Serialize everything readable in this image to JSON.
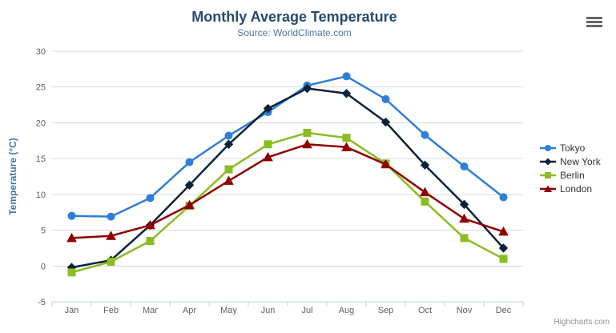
{
  "chart_data": {
    "type": "line",
    "title": "Monthly Average Temperature",
    "subtitle": "Source: WorldClimate.com",
    "categories": [
      "Jan",
      "Feb",
      "Mar",
      "Apr",
      "May",
      "Jun",
      "Jul",
      "Aug",
      "Sep",
      "Oct",
      "Nov",
      "Dec"
    ],
    "xlabel": "",
    "ylabel": "Temperature (°C)",
    "ylim": [
      -5,
      30
    ],
    "yticks": [
      -5,
      0,
      5,
      10,
      15,
      20,
      25,
      30
    ],
    "grid": true,
    "legend_position": "right",
    "series": [
      {
        "name": "Tokyo",
        "color": "#2f7ed8",
        "marker": "circle",
        "values": [
          7.0,
          6.9,
          9.5,
          14.5,
          18.2,
          21.5,
          25.2,
          26.5,
          23.3,
          18.3,
          13.9,
          9.6
        ]
      },
      {
        "name": "New York",
        "color": "#0d233a",
        "marker": "diamond",
        "values": [
          -0.2,
          0.8,
          5.7,
          11.3,
          17.0,
          22.0,
          24.8,
          24.1,
          20.1,
          14.1,
          8.6,
          2.5
        ]
      },
      {
        "name": "Berlin",
        "color": "#8bbc21",
        "marker": "square",
        "values": [
          -0.9,
          0.6,
          3.5,
          8.4,
          13.5,
          17.0,
          18.6,
          17.9,
          14.3,
          9.0,
          3.9,
          1.0
        ]
      },
      {
        "name": "London",
        "color": "#910000",
        "marker": "triangle",
        "values": [
          3.9,
          4.2,
          5.7,
          8.5,
          11.9,
          15.2,
          17.0,
          16.6,
          14.2,
          10.3,
          6.6,
          4.8
        ]
      }
    ],
    "style": {
      "title_color": "#274b6d",
      "subtitle_color": "#4d759e",
      "axis_title_color": "#4572a7",
      "tick_label_color": "#606060",
      "gridline_color": "#d8d8d8",
      "axis_line_color": "#c0d0e0",
      "legend_text_color": "#333333"
    }
  },
  "icons": {
    "context_menu": "hamburger-menu-icon"
  },
  "credits": "Highcharts.com"
}
